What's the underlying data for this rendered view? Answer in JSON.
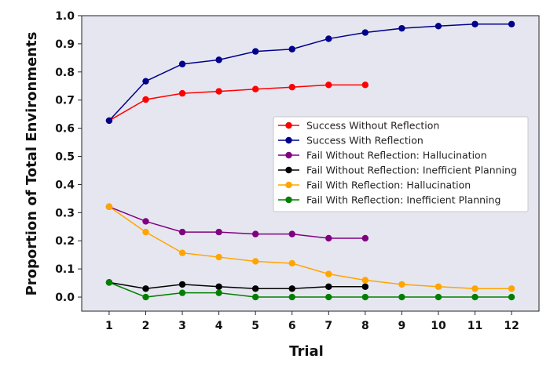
{
  "chart_data": {
    "type": "line",
    "xlabel": "Trial",
    "ylabel": "Proportion of Total Environments",
    "x_ticks": [
      "1",
      "2",
      "3",
      "4",
      "5",
      "6",
      "7",
      "8",
      "9",
      "10",
      "11",
      "12"
    ],
    "y_ticks": [
      "0.0",
      "0.1",
      "0.2",
      "0.3",
      "0.4",
      "0.5",
      "0.6",
      "0.7",
      "0.8",
      "0.9",
      "1.0"
    ],
    "xlim": [
      0.25,
      12.75
    ],
    "ylim": [
      -0.05,
      1.0
    ],
    "grid": false,
    "legend_position": "center-right",
    "series": [
      {
        "name": "Success Without Reflection",
        "color": "#ff0000",
        "x": [
          1,
          2,
          3,
          4,
          5,
          6,
          7,
          8
        ],
        "values": [
          0.627,
          0.702,
          0.724,
          0.731,
          0.739,
          0.746,
          0.754,
          0.754
        ]
      },
      {
        "name": "Success With Reflection",
        "color": "#00008b",
        "x": [
          1,
          2,
          3,
          4,
          5,
          6,
          7,
          8,
          9,
          10,
          11,
          12
        ],
        "values": [
          0.627,
          0.767,
          0.828,
          0.843,
          0.873,
          0.881,
          0.918,
          0.94,
          0.955,
          0.963,
          0.97,
          0.97
        ]
      },
      {
        "name": "Fail Without Reflection: Hallucination",
        "color": "#800080",
        "x": [
          1,
          2,
          3,
          4,
          5,
          6,
          7,
          8
        ],
        "values": [
          0.321,
          0.269,
          0.231,
          0.231,
          0.224,
          0.224,
          0.209,
          0.209
        ]
      },
      {
        "name": "Fail Without Reflection: Inefficient Planning",
        "color": "#000000",
        "x": [
          1,
          2,
          3,
          4,
          5,
          6,
          7,
          8
        ],
        "values": [
          0.052,
          0.03,
          0.045,
          0.037,
          0.03,
          0.03,
          0.037,
          0.037
        ]
      },
      {
        "name": "Fail With Reflection: Hallucination",
        "color": "#ffa500",
        "x": [
          1,
          2,
          3,
          4,
          5,
          6,
          7,
          8,
          9,
          10,
          11,
          12
        ],
        "values": [
          0.321,
          0.231,
          0.157,
          0.142,
          0.127,
          0.12,
          0.082,
          0.06,
          0.045,
          0.037,
          0.03,
          0.03
        ]
      },
      {
        "name": "Fail With Reflection: Inefficient Planning",
        "color": "#008000",
        "x": [
          1,
          2,
          3,
          4,
          5,
          6,
          7,
          8,
          9,
          10,
          11,
          12
        ],
        "values": [
          0.052,
          0.0,
          0.015,
          0.015,
          0.0,
          0.0,
          0.0,
          0.0,
          0.0,
          0.0,
          0.0,
          0.0
        ]
      }
    ]
  }
}
